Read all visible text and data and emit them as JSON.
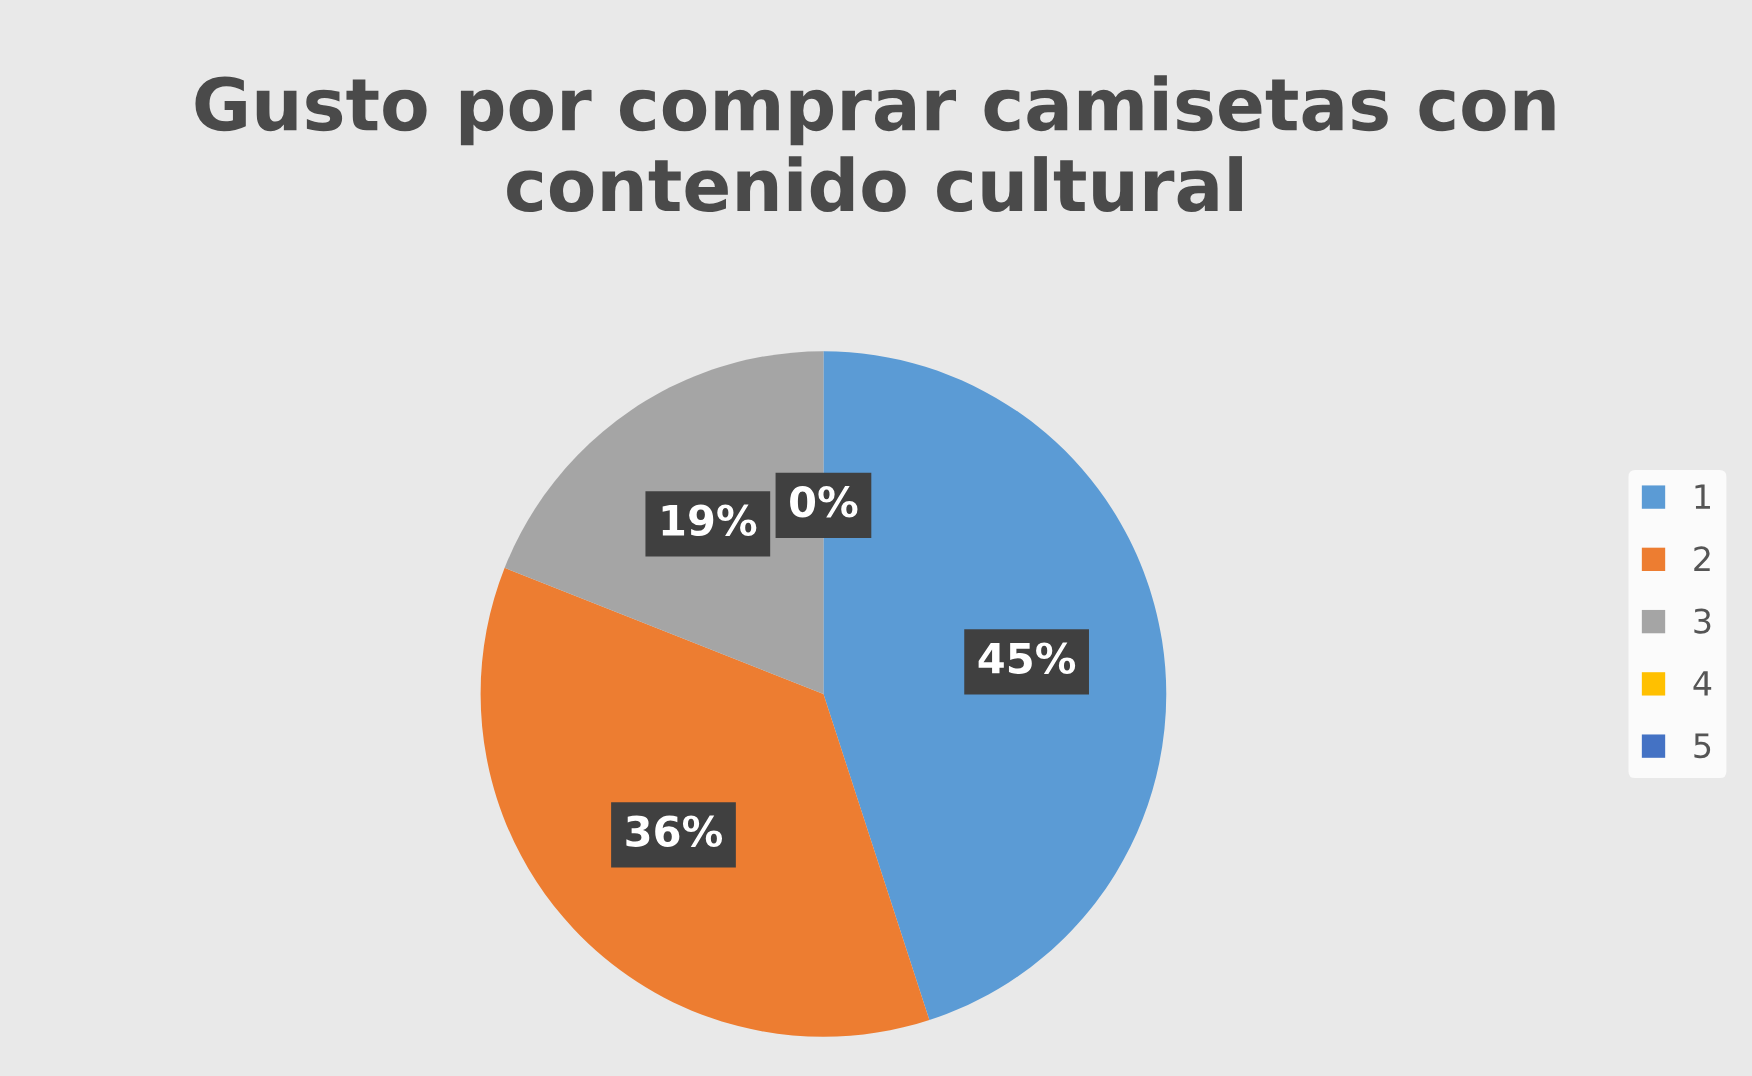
{
  "chart_data": {
    "type": "pie",
    "title": "Gusto por comprar camisetas con contenido cultural",
    "categories": [
      "1",
      "2",
      "3",
      "4",
      "5"
    ],
    "values": [
      45,
      36,
      19,
      0,
      0
    ],
    "value_labels": [
      "45%",
      "36%",
      "19%",
      "0%",
      null
    ],
    "colors": [
      "#5b9bd5",
      "#ed7d31",
      "#a5a5a5",
      "#ffc000",
      "#4472c4"
    ],
    "legend": "right"
  }
}
